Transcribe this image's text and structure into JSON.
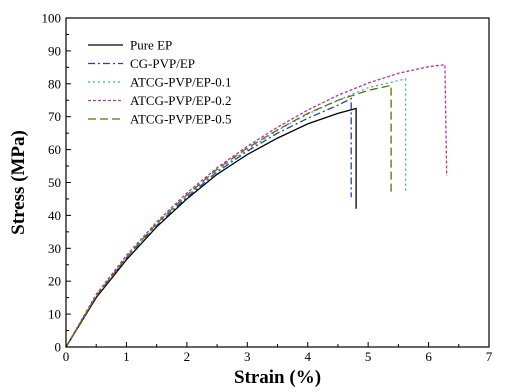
{
  "chart_data": {
    "type": "line",
    "title": "",
    "xlabel": "Strain (%)",
    "ylabel": "Stress (MPa)",
    "xlim": [
      0,
      7
    ],
    "ylim": [
      0,
      100
    ],
    "xticks": [
      "0",
      "1",
      "2",
      "3",
      "4",
      "5",
      "6",
      "7"
    ],
    "yticks": [
      "0",
      "10",
      "20",
      "30",
      "40",
      "50",
      "60",
      "70",
      "80",
      "90",
      "100"
    ],
    "grid": false,
    "legend_position": "top-left",
    "series": [
      {
        "name": "Pure EP",
        "color": "#000000",
        "dash": "solid",
        "points": [
          [
            0,
            0
          ],
          [
            0.5,
            15
          ],
          [
            1,
            26.5
          ],
          [
            1.5,
            36.5
          ],
          [
            2,
            45
          ],
          [
            2.5,
            52.5
          ],
          [
            3,
            58.5
          ],
          [
            3.5,
            63.5
          ],
          [
            4,
            67.8
          ],
          [
            4.5,
            71
          ],
          [
            4.8,
            72.5
          ],
          [
            4.8,
            42
          ]
        ]
      },
      {
        "name": "CG-PVP/EP",
        "color": "#1f3fbf",
        "dash": "dashdot",
        "points": [
          [
            0,
            0
          ],
          [
            0.5,
            15.5
          ],
          [
            1,
            27
          ],
          [
            1.5,
            37
          ],
          [
            2,
            45.5
          ],
          [
            2.5,
            53.2
          ],
          [
            3,
            59.5
          ],
          [
            3.5,
            65
          ],
          [
            4,
            69.5
          ],
          [
            4.5,
            73.5
          ],
          [
            4.72,
            75.5
          ],
          [
            4.72,
            45.5
          ]
        ]
      },
      {
        "name": "ATCG-PVP/EP-0.1",
        "color": "#2ab5b5",
        "dash": "dotted",
        "points": [
          [
            0,
            0
          ],
          [
            0.5,
            15.5
          ],
          [
            1,
            27
          ],
          [
            1.5,
            37.2
          ],
          [
            2,
            46
          ],
          [
            2.5,
            53.5
          ],
          [
            3,
            60
          ],
          [
            3.5,
            65.8
          ],
          [
            4,
            70.8
          ],
          [
            4.5,
            75
          ],
          [
            5,
            78.8
          ],
          [
            5.62,
            81.5
          ],
          [
            5.62,
            47.5
          ]
        ]
      },
      {
        "name": "ATCG-PVP/EP-0.2",
        "color": "#c0309a",
        "dash": "shortdash",
        "points": [
          [
            0,
            0
          ],
          [
            0.5,
            16
          ],
          [
            1,
            27.8
          ],
          [
            1.5,
            38
          ],
          [
            2,
            46.8
          ],
          [
            2.5,
            54.5
          ],
          [
            3,
            61
          ],
          [
            3.5,
            66.8
          ],
          [
            4,
            72
          ],
          [
            4.5,
            76.5
          ],
          [
            5,
            80.2
          ],
          [
            5.5,
            83.2
          ],
          [
            6,
            85.2
          ],
          [
            6.27,
            85.8
          ],
          [
            6.3,
            52
          ]
        ]
      },
      {
        "name": "ATCG-PVP/EP-0.5",
        "color": "#6b6b00",
        "dash": "longdash",
        "points": [
          [
            0,
            0
          ],
          [
            0.5,
            15.5
          ],
          [
            1,
            27.2
          ],
          [
            1.5,
            37.5
          ],
          [
            2,
            46.2
          ],
          [
            2.5,
            54
          ],
          [
            3,
            60.5
          ],
          [
            3.5,
            66
          ],
          [
            4,
            71
          ],
          [
            4.5,
            75
          ],
          [
            5,
            78
          ],
          [
            5.38,
            79.5
          ],
          [
            5.38,
            46.5
          ]
        ]
      }
    ]
  }
}
